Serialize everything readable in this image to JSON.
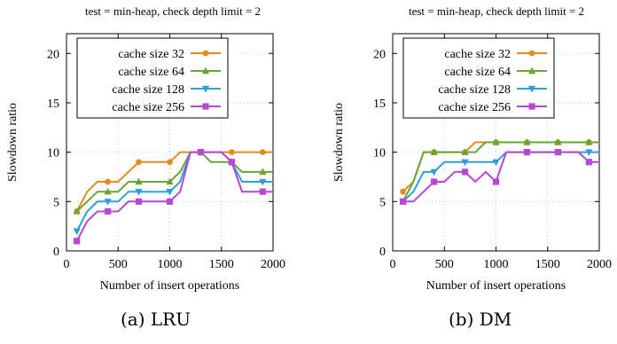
{
  "series_styles": [
    {
      "name": "cache size 32",
      "color": "#e68a1e",
      "marker": "circle"
    },
    {
      "name": "cache size 64",
      "color": "#6aa532",
      "marker": "triangle-up"
    },
    {
      "name": "cache size 128",
      "color": "#2f9fd8",
      "marker": "triangle-down"
    },
    {
      "name": "cache size 256",
      "color": "#b846d6",
      "marker": "square"
    }
  ],
  "chart_data": [
    {
      "type": "line",
      "title": "test = min-heap, check depth limit = 2",
      "xlabel": "Number of insert operations",
      "ylabel": "Slowdown ratio",
      "caption": "(a) LRU",
      "xlim": [
        0,
        2000
      ],
      "ylim": [
        0,
        22
      ],
      "xticks": [
        0,
        500,
        1000,
        1500,
        2000
      ],
      "yticks": [
        0,
        5,
        10,
        15,
        20
      ],
      "grid": true,
      "legend": "top-left",
      "x": [
        100,
        200,
        300,
        400,
        500,
        600,
        700,
        800,
        900,
        1000,
        1100,
        1200,
        1300,
        1400,
        1500,
        1600,
        1700,
        1800,
        1900,
        2000
      ],
      "series": [
        {
          "name": "cache size 32",
          "values": [
            4,
            6,
            7,
            7,
            7,
            8,
            9,
            9,
            9,
            9,
            10,
            10,
            10,
            10,
            10,
            10,
            10,
            10,
            10,
            10
          ]
        },
        {
          "name": "cache size 64",
          "values": [
            4,
            5,
            6,
            6,
            6,
            7,
            7,
            7,
            7,
            7,
            8,
            10,
            10,
            9,
            9,
            9,
            8,
            8,
            8,
            8
          ]
        },
        {
          "name": "cache size 128",
          "values": [
            2,
            4,
            5,
            5,
            5,
            6,
            6,
            6,
            6,
            6,
            7,
            10,
            10,
            10,
            10,
            9,
            7,
            7,
            7,
            7
          ]
        },
        {
          "name": "cache size 256",
          "values": [
            1,
            3,
            4,
            4,
            4,
            5,
            5,
            5,
            5,
            5,
            6,
            10,
            10,
            10,
            10,
            9,
            6,
            6,
            6,
            6
          ]
        }
      ]
    },
    {
      "type": "line",
      "title": "test = min-heap, check depth limit = 2",
      "xlabel": "Number of insert operations",
      "ylabel": "Slowdown ratio",
      "caption": "(b) DM",
      "xlim": [
        0,
        2000
      ],
      "ylim": [
        0,
        22
      ],
      "xticks": [
        0,
        500,
        1000,
        1500,
        2000
      ],
      "yticks": [
        0,
        5,
        10,
        15,
        20
      ],
      "grid": true,
      "legend": "top-left",
      "x": [
        100,
        200,
        300,
        400,
        500,
        600,
        700,
        800,
        900,
        1000,
        1100,
        1200,
        1300,
        1400,
        1500,
        1600,
        1700,
        1800,
        1900,
        2000
      ],
      "series": [
        {
          "name": "cache size 32",
          "values": [
            6,
            7,
            10,
            10,
            10,
            10,
            10,
            11,
            11,
            11,
            11,
            11,
            11,
            11,
            11,
            11,
            11,
            11,
            11,
            11
          ]
        },
        {
          "name": "cache size 64",
          "values": [
            5,
            7,
            10,
            10,
            10,
            10,
            10,
            10,
            11,
            11,
            11,
            11,
            11,
            11,
            11,
            11,
            11,
            11,
            11,
            11
          ]
        },
        {
          "name": "cache size 128",
          "values": [
            5,
            6,
            8,
            8,
            9,
            9,
            9,
            9,
            9,
            9,
            10,
            10,
            10,
            10,
            10,
            10,
            10,
            10,
            10,
            10
          ]
        },
        {
          "name": "cache size 256",
          "values": [
            5,
            5,
            6,
            7,
            7,
            8,
            8,
            7,
            8,
            7,
            10,
            10,
            10,
            10,
            10,
            10,
            10,
            10,
            9,
            9
          ]
        }
      ]
    }
  ]
}
